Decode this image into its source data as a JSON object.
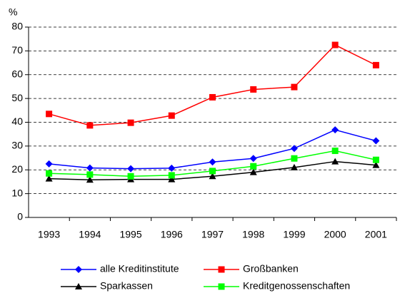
{
  "chart_data": {
    "type": "line",
    "y_label": "%",
    "categories": [
      "1993",
      "1994",
      "1995",
      "1996",
      "1997",
      "1998",
      "1999",
      "2000",
      "2001"
    ],
    "series": [
      {
        "name": "alle Kreditinstitute",
        "color": "#0000ff",
        "marker": "diamond",
        "values": [
          22.5,
          20.8,
          20.5,
          20.7,
          23.3,
          24.8,
          29,
          36.8,
          32.2
        ]
      },
      {
        "name": "Großbanken",
        "color": "#ff0000",
        "marker": "square",
        "values": [
          43.5,
          38.7,
          39.8,
          42.8,
          50.5,
          53.8,
          54.8,
          72.5,
          64
        ]
      },
      {
        "name": "Sparkassen",
        "color": "#000000",
        "marker": "triangle",
        "values": [
          16.3,
          15.8,
          16,
          16,
          17.3,
          19,
          21,
          23.5,
          22
        ]
      },
      {
        "name": "Kreditgenossenschaften",
        "color": "#00ff00",
        "marker": "square",
        "values": [
          18.5,
          18,
          17.3,
          17.7,
          19.5,
          21.5,
          24.8,
          28,
          24.2
        ]
      }
    ],
    "ylim": [
      0,
      80
    ],
    "yticks": [
      0,
      10,
      20,
      30,
      40,
      50,
      60,
      70,
      80
    ],
    "grid": true
  }
}
